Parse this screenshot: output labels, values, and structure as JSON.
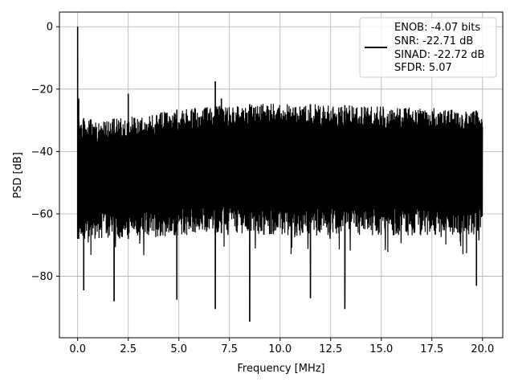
{
  "chart_data": {
    "type": "line",
    "title": "",
    "xlabel": "Frequency [MHz]",
    "ylabel": "PSD [dB]",
    "xlim": [
      -0.9,
      21.0
    ],
    "ylim": [
      -99.7,
      4.7
    ],
    "x_ticks": [
      0.0,
      2.5,
      5.0,
      7.5,
      10.0,
      12.5,
      15.0,
      17.5,
      20.0
    ],
    "x_tick_labels": [
      "0.0",
      "2.5",
      "5.0",
      "7.5",
      "10.0",
      "12.5",
      "15.0",
      "17.5",
      "20.0"
    ],
    "y_ticks": [
      0,
      -20,
      -40,
      -60,
      -80
    ],
    "y_tick_labels": [
      "0",
      "−20",
      "−40",
      "−60",
      "−80"
    ],
    "grid": true,
    "line_color": "#000000",
    "legend": {
      "placement": "top-right",
      "entries": [
        "ENOB: -4.07 bits",
        "SNR: -22.71 dB",
        "SINAD: -22.72 dB",
        "SFDR: 5.07"
      ]
    },
    "series": [
      {
        "name": "ENOB: -4.07 bits\nSNR: -22.71 dB\nSINAD: -22.72 dB\nSFDR: 5.07",
        "x_range": [
          0.0,
          20.0
        ],
        "noise_ceiling": [
          [
            0.0,
            -29
          ],
          [
            1.0,
            -30
          ],
          [
            2.5,
            -29
          ],
          [
            5.0,
            -26.5
          ],
          [
            7.5,
            -25
          ],
          [
            10.0,
            -24.5
          ],
          [
            12.5,
            -25
          ],
          [
            15.0,
            -25.5
          ],
          [
            17.5,
            -26
          ],
          [
            20.0,
            -27
          ]
        ],
        "noise_floor": [
          [
            0.0,
            -68
          ],
          [
            2.5,
            -68
          ],
          [
            5.0,
            -67
          ],
          [
            7.5,
            -66
          ],
          [
            10.0,
            -67
          ],
          [
            12.5,
            -67
          ],
          [
            15.0,
            -67
          ],
          [
            17.5,
            -67
          ],
          [
            20.0,
            -67
          ]
        ],
        "peaks": [
          {
            "x": 0.0,
            "y": 0.0
          },
          {
            "x": 0.05,
            "y": -23.0
          },
          {
            "x": 2.5,
            "y": -21.5
          },
          {
            "x": 6.8,
            "y": -17.5
          },
          {
            "x": 7.1,
            "y": -23.0
          }
        ],
        "dips": [
          {
            "x": 0.3,
            "y": -84.5
          },
          {
            "x": 1.8,
            "y": -88.0
          },
          {
            "x": 4.9,
            "y": -87.5
          },
          {
            "x": 6.8,
            "y": -90.5
          },
          {
            "x": 8.5,
            "y": -94.5
          },
          {
            "x": 11.5,
            "y": -87.0
          },
          {
            "x": 13.2,
            "y": -90.5
          },
          {
            "x": 19.7,
            "y": -83.0
          }
        ]
      }
    ]
  }
}
